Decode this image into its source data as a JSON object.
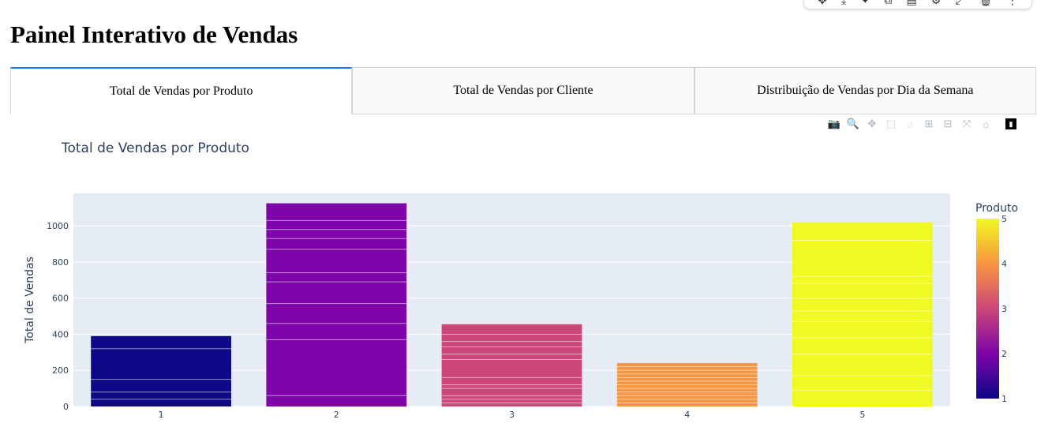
{
  "page": {
    "heading": "Painel Interativo de Vendas"
  },
  "tabs": [
    {
      "label": "Total de Vendas por Produto",
      "active": true
    },
    {
      "label": "Total de Vendas por Cliente",
      "active": false
    },
    {
      "label": "Distribuição de Vendas por Dia da Semana",
      "active": false
    }
  ],
  "colorbar": {
    "title": "Produto",
    "ticks": [
      "5",
      "4",
      "3",
      "2",
      "1"
    ]
  },
  "chart_data": {
    "type": "bar",
    "title": "Total de Vendas por Produto",
    "xlabel": "",
    "ylabel": "Total de Vendas",
    "categories": [
      "1",
      "2",
      "3",
      "4",
      "5"
    ],
    "values": [
      390,
      1125,
      455,
      240,
      1020
    ],
    "ylim": [
      0,
      1180
    ],
    "yticks": [
      0,
      200,
      400,
      600,
      800,
      1000
    ],
    "colors": [
      "#0d0887",
      "#7e03a8",
      "#cc4778",
      "#f89540",
      "#f0f921"
    ],
    "segments": [
      [
        0,
        40,
        80,
        150,
        320,
        390
      ],
      [
        0,
        60,
        370,
        460,
        570,
        690,
        740,
        870,
        930,
        980,
        1030,
        1125
      ],
      [
        0,
        20,
        40,
        60,
        100,
        120,
        160,
        260,
        290,
        330,
        360,
        400,
        455
      ],
      [
        0,
        20,
        40,
        60,
        80,
        100,
        120,
        140,
        160,
        180,
        200,
        220,
        240
      ],
      [
        0,
        90,
        170,
        290,
        380,
        470,
        530,
        600,
        680,
        720,
        920,
        1020
      ]
    ],
    "grid": true,
    "legend": "colorbar-right"
  },
  "modebar": [
    "camera-icon",
    "zoom-icon",
    "pan-icon",
    "box-select-icon",
    "lasso-icon",
    "zoom-in-icon",
    "zoom-out-icon",
    "autoscale-icon",
    "reset-icon",
    "plotly-logo-icon"
  ]
}
